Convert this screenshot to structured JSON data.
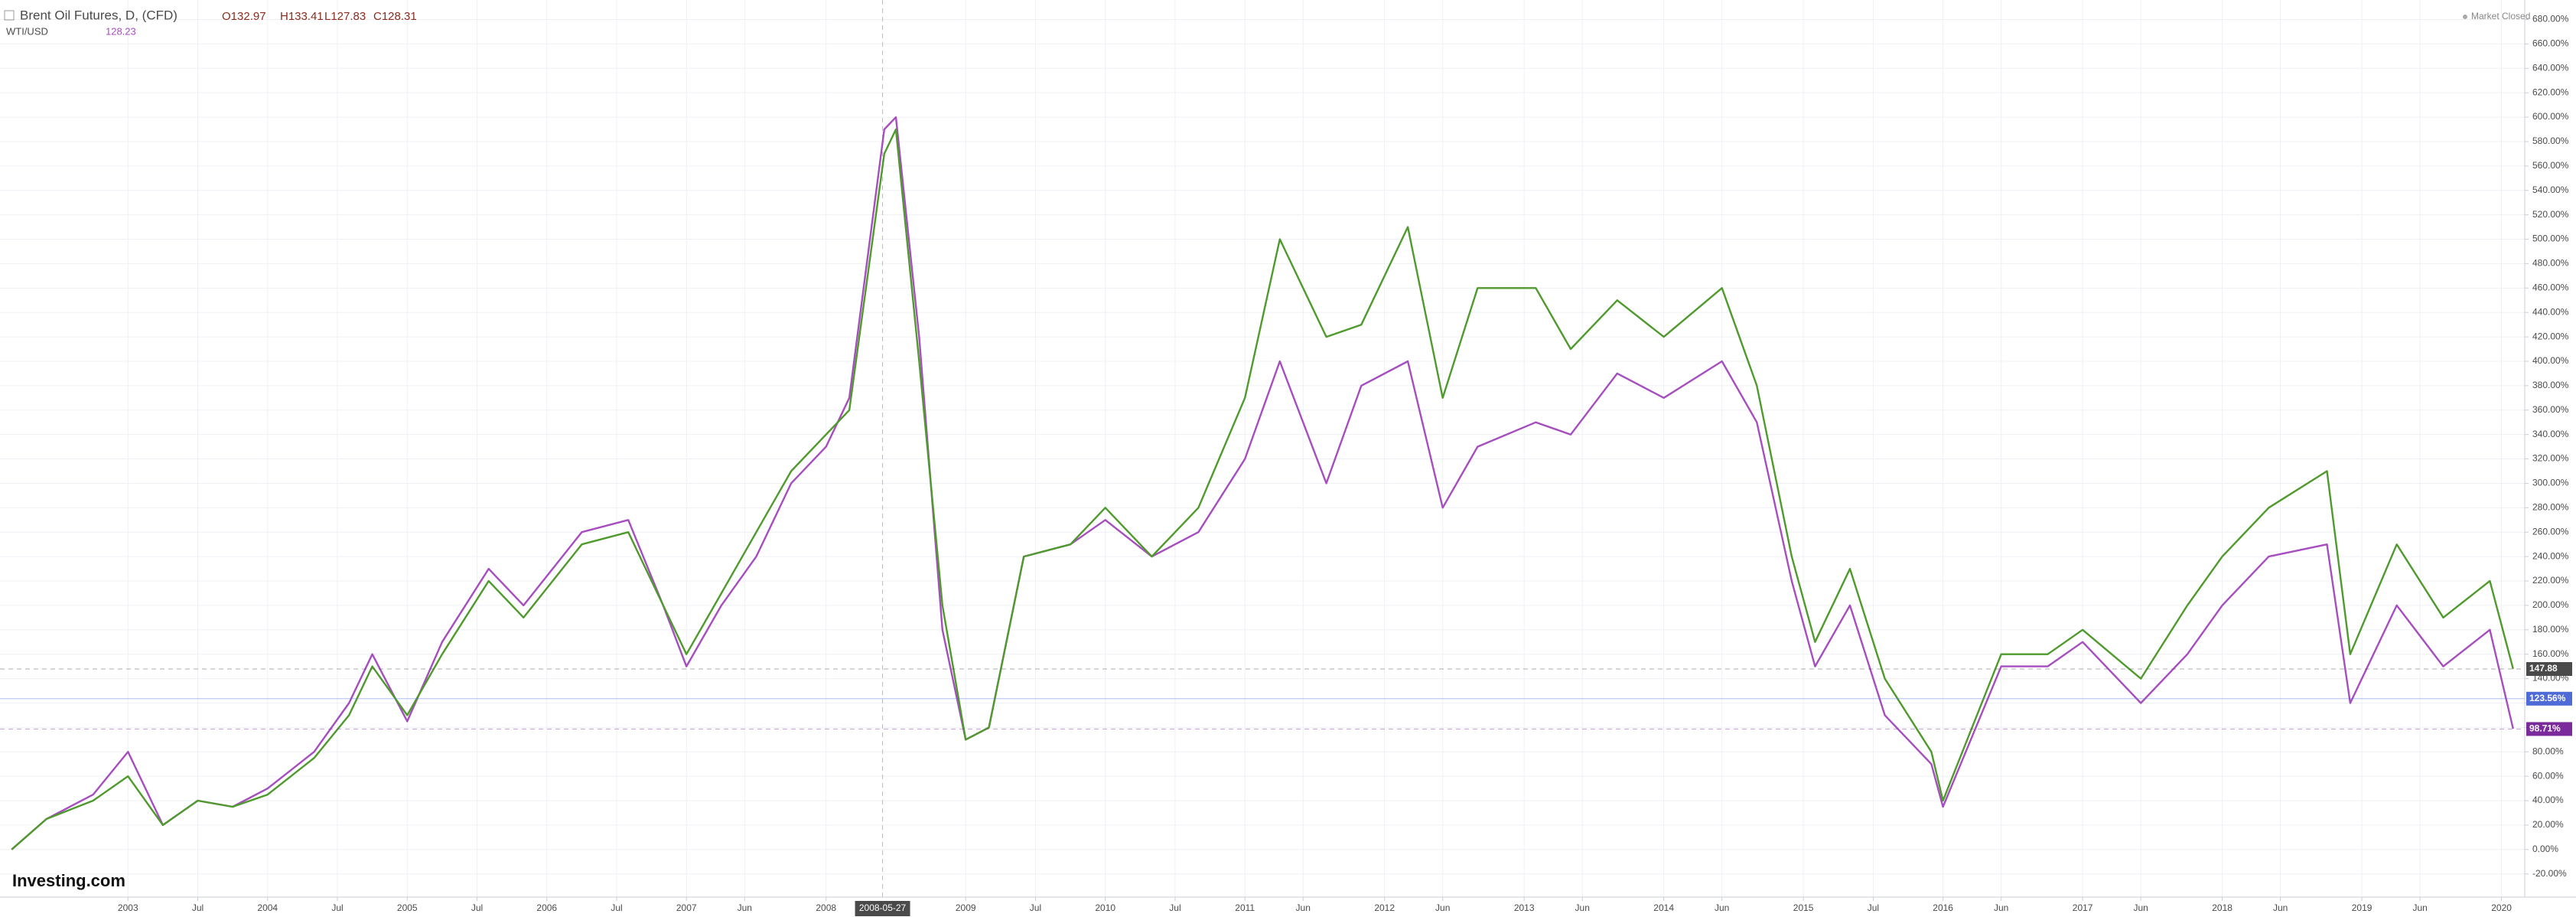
{
  "chart_data": {
    "type": "line",
    "title": "Brent Oil Futures, D, (CFD)",
    "brent_quote": [
      "O132.97",
      "H133.41",
      "L127.83",
      "C128.31"
    ],
    "wti_quote": "128.23",
    "status": "Market Closed",
    "logo": "Investing.com",
    "crosshair": "2008-05-27",
    "x": [
      "2002-03",
      "2002-06",
      "2002-10",
      "2003-01",
      "2003-04",
      "2003-07",
      "2003-10",
      "2004-01",
      "2004-05",
      "2004-08",
      "2004-10",
      "2005-01",
      "2005-04",
      "2005-08",
      "2005-11",
      "2006-04",
      "2006-08",
      "2006-11",
      "2007-01",
      "2007-04",
      "2007-07",
      "2007-10",
      "2008-01",
      "2008-03",
      "2008-06",
      "2008-07",
      "2008-09",
      "2008-11",
      "2009-01",
      "2009-03",
      "2009-06",
      "2009-10",
      "2010-01",
      "2010-05",
      "2010-09",
      "2011-01",
      "2011-04",
      "2011-08",
      "2011-11",
      "2012-03",
      "2012-06",
      "2012-09",
      "2013-02",
      "2013-05",
      "2013-09",
      "2014-01",
      "2014-06",
      "2014-09",
      "2014-12",
      "2015-02",
      "2015-05",
      "2015-08",
      "2015-12",
      "2016-01",
      "2016-06",
      "2016-10",
      "2017-01",
      "2017-06",
      "2017-10",
      "2018-01",
      "2018-05",
      "2018-10",
      "2018-12",
      "2019-04",
      "2019-08",
      "2019-12",
      "2020-02"
    ],
    "series": [
      {
        "name": "Brent Oil Futures",
        "color": "#4f9a2c",
        "values": [
          0,
          25,
          40,
          60,
          20,
          40,
          35,
          45,
          75,
          110,
          150,
          110,
          160,
          220,
          190,
          250,
          260,
          200,
          160,
          210,
          260,
          310,
          340,
          360,
          570,
          590,
          400,
          200,
          90,
          100,
          240,
          250,
          280,
          240,
          280,
          370,
          500,
          420,
          430,
          510,
          370,
          460,
          460,
          410,
          450,
          420,
          460,
          380,
          240,
          170,
          230,
          140,
          80,
          40,
          160,
          160,
          180,
          140,
          200,
          240,
          280,
          310,
          160,
          250,
          190,
          220,
          148
        ]
      },
      {
        "name": "WTI/USD",
        "color": "#a64dbf",
        "values": [
          0,
          25,
          45,
          80,
          20,
          40,
          35,
          50,
          80,
          120,
          160,
          105,
          170,
          230,
          200,
          260,
          270,
          200,
          150,
          200,
          240,
          300,
          330,
          370,
          590,
          600,
          420,
          180,
          90,
          100,
          240,
          250,
          270,
          240,
          260,
          320,
          400,
          300,
          380,
          400,
          280,
          330,
          350,
          340,
          390,
          370,
          400,
          350,
          220,
          150,
          200,
          110,
          70,
          35,
          150,
          150,
          170,
          120,
          160,
          200,
          240,
          250,
          120,
          200,
          150,
          180,
          99
        ]
      }
    ],
    "xlim": [
      "2002-02",
      "2020-03"
    ],
    "xticks": [
      {
        "value": "2003-01",
        "label": "2003"
      },
      {
        "value": "2003-07",
        "label": "Jul"
      },
      {
        "value": "2004-01",
        "label": "2004"
      },
      {
        "value": "2004-07",
        "label": "Jul"
      },
      {
        "value": "2005-01",
        "label": "2005"
      },
      {
        "value": "2005-07",
        "label": "Jul"
      },
      {
        "value": "2006-01",
        "label": "2006"
      },
      {
        "value": "2006-07",
        "label": "Jul"
      },
      {
        "value": "2007-01",
        "label": "2007"
      },
      {
        "value": "2007-06",
        "label": "Jun"
      },
      {
        "value": "2008-01",
        "label": "2008"
      },
      {
        "value": "2009-01",
        "label": "2009"
      },
      {
        "value": "2009-07",
        "label": "Jul"
      },
      {
        "value": "2010-01",
        "label": "2010"
      },
      {
        "value": "2010-07",
        "label": "Jul"
      },
      {
        "value": "2011-01",
        "label": "2011"
      },
      {
        "value": "2011-06",
        "label": "Jun"
      },
      {
        "value": "2012-01",
        "label": "2012"
      },
      {
        "value": "2012-06",
        "label": "Jun"
      },
      {
        "value": "2013-01",
        "label": "2013"
      },
      {
        "value": "2013-06",
        "label": "Jun"
      },
      {
        "value": "2014-01",
        "label": "2014"
      },
      {
        "value": "2014-06",
        "label": "Jun"
      },
      {
        "value": "2015-01",
        "label": "2015"
      },
      {
        "value": "2015-07",
        "label": "Jul"
      },
      {
        "value": "2016-01",
        "label": "2016"
      },
      {
        "value": "2016-06",
        "label": "Jun"
      },
      {
        "value": "2017-01",
        "label": "2017"
      },
      {
        "value": "2017-06",
        "label": "Jun"
      },
      {
        "value": "2018-01",
        "label": "2018"
      },
      {
        "value": "2018-06",
        "label": "Jun"
      },
      {
        "value": "2019-01",
        "label": "2019"
      },
      {
        "value": "2019-06",
        "label": "Jun"
      },
      {
        "value": "2020-01",
        "label": "2020"
      }
    ],
    "ylim": [
      -39,
      696
    ],
    "yticks": [
      {
        "value": -20,
        "label": "-20.00%"
      },
      {
        "value": 0,
        "label": "0.00%"
      },
      {
        "value": 20,
        "label": "20.00%"
      },
      {
        "value": 40,
        "label": "40.00%"
      },
      {
        "value": 60,
        "label": "60.00%"
      },
      {
        "value": 80,
        "label": "80.00%"
      },
      {
        "value": 100,
        "label": "100.00%"
      },
      {
        "value": 120,
        "label": "120.00%"
      },
      {
        "value": 140,
        "label": "140.00%"
      },
      {
        "value": 160,
        "label": "160.00%"
      },
      {
        "value": 180,
        "label": "180.00%"
      },
      {
        "value": 200,
        "label": "200.00%"
      },
      {
        "value": 220,
        "label": "220.00%"
      },
      {
        "value": 240,
        "label": "240.00%"
      },
      {
        "value": 260,
        "label": "260.00%"
      },
      {
        "value": 280,
        "label": "280.00%"
      },
      {
        "value": 300,
        "label": "300.00%"
      },
      {
        "value": 320,
        "label": "320.00%"
      },
      {
        "value": 340,
        "label": "340.00%"
      },
      {
        "value": 360,
        "label": "360.00%"
      },
      {
        "value": 380,
        "label": "380.00%"
      },
      {
        "value": 400,
        "label": "400.00%"
      },
      {
        "value": 420,
        "label": "420.00%"
      },
      {
        "value": 440,
        "label": "440.00%"
      },
      {
        "value": 460,
        "label": "460.00%"
      },
      {
        "value": 480,
        "label": "480.00%"
      },
      {
        "value": 500,
        "label": "500.00%"
      },
      {
        "value": 520,
        "label": "520.00%"
      },
      {
        "value": 540,
        "label": "540.00%"
      },
      {
        "value": 560,
        "label": "560.00%"
      },
      {
        "value": 580,
        "label": "580.00%"
      },
      {
        "value": 600,
        "label": "600.00%"
      },
      {
        "value": 620,
        "label": "620.00%"
      },
      {
        "value": 640,
        "label": "640.00%"
      },
      {
        "value": 660,
        "label": "660.00%"
      },
      {
        "value": 680,
        "label": "680.00%"
      }
    ],
    "price_markers": [
      {
        "value": 147.88,
        "label": "147.88",
        "color": "#4a4a4a"
      },
      {
        "value": 123.56,
        "label": "123.56%",
        "color": "#4f6bd8"
      },
      {
        "value": 98.71,
        "label": "98.71%",
        "color": "#7b2a9c"
      }
    ],
    "grid": true
  }
}
